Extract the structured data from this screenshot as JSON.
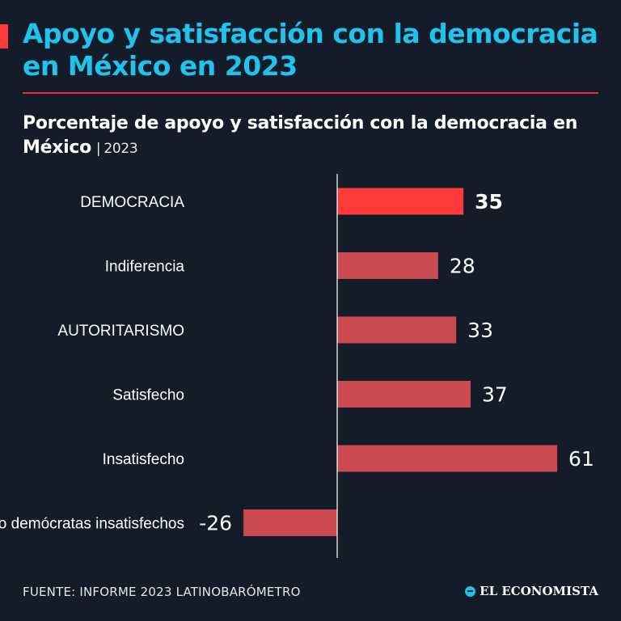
{
  "header": {
    "title": "Apoyo y satisfacción con la democracia en México en 2023",
    "subtitle_main": "Porcentaje de apoyo y satisfacción con la democracia en México",
    "subtitle_sep": "|",
    "subtitle_year": "2023"
  },
  "colors": {
    "background": "#141c29",
    "title": "#1ec3ee",
    "rule": "#e5343b",
    "highlight_bar": "#ff3b3b",
    "bar": "#c94a4f",
    "axis": "#ffffff"
  },
  "chart_data": {
    "type": "bar",
    "orientation": "horizontal",
    "title": "Porcentaje de apoyo y satisfacción con la democracia en México | 2023",
    "xlabel": "",
    "ylabel": "",
    "xlim": [
      -30,
      65
    ],
    "grid": false,
    "categories": [
      "DEMOCRACIA",
      "Indiferencia",
      "AUTORITARISMO",
      "Satisfecho",
      "Insatisfecho",
      "No demócratas insatisfechos"
    ],
    "values": [
      35,
      28,
      33,
      37,
      61,
      -26
    ],
    "value_labels": [
      "35",
      "28",
      "33",
      "37",
      "61",
      "-26"
    ],
    "highlight_index": 0
  },
  "footer": {
    "source": "FUENTE: INFORME 2023 LATINOBARÓMETRO",
    "brand": "EL ECONOMISTA",
    "brand_icon": "el-economista-logo-icon"
  }
}
